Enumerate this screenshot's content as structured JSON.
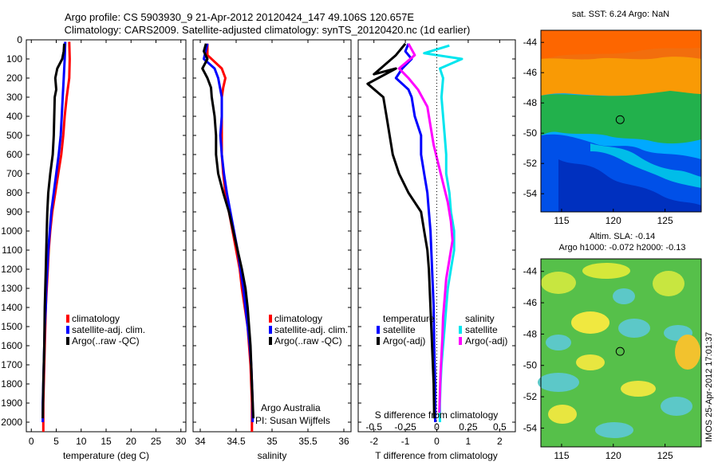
{
  "header": {
    "line1": "Argo profile: CS 5903930_9 21-Apr-2012 20120424_147 49.106S 120.657E",
    "line2": "Climatology: CARS2009. Satellite-adjusted climatology: synTS_20120420.nc (1d earlier)"
  },
  "colors": {
    "climatology": "#ff0000",
    "satellite": "#0000ff",
    "argo": "#000000",
    "sat_salinity": "#00e5ee",
    "argo_salinity_diff": "#ff00ff"
  },
  "chart_data": [
    {
      "id": "temperature",
      "type": "line",
      "xlabel": "temperature (deg C)",
      "ylabel": "",
      "xlim": [
        -1,
        31
      ],
      "ylim": [
        2050,
        0
      ],
      "xticks": [
        0,
        5,
        10,
        15,
        20,
        25,
        30
      ],
      "yticks": [
        0,
        100,
        200,
        300,
        400,
        500,
        600,
        700,
        800,
        900,
        1000,
        1100,
        1200,
        1300,
        1400,
        1500,
        1600,
        1700,
        1800,
        1900,
        2000
      ],
      "legend": [
        "climatology",
        "satellite-adj. clim.",
        "Argo(..raw -QC)"
      ],
      "series": [
        {
          "name": "climatology",
          "color": "#ff0000",
          "points": [
            [
              7.6,
              10
            ],
            [
              7.7,
              100
            ],
            [
              7.6,
              200
            ],
            [
              7.1,
              300
            ],
            [
              6.7,
              400
            ],
            [
              6.4,
              500
            ],
            [
              6.0,
              600
            ],
            [
              5.4,
              700
            ],
            [
              4.8,
              800
            ],
            [
              4.2,
              900
            ],
            [
              3.8,
              1000
            ],
            [
              3.5,
              1100
            ],
            [
              3.3,
              1200
            ],
            [
              3.1,
              1300
            ],
            [
              2.9,
              1400
            ],
            [
              2.8,
              1500
            ],
            [
              2.7,
              1600
            ],
            [
              2.6,
              1700
            ],
            [
              2.5,
              1800
            ],
            [
              2.4,
              1900
            ],
            [
              2.4,
              2050
            ]
          ]
        },
        {
          "name": "satellite-adj. clim.",
          "color": "#0000ff",
          "points": [
            [
              6.8,
              10
            ],
            [
              6.7,
              100
            ],
            [
              6.5,
              200
            ],
            [
              6.3,
              300
            ],
            [
              6.1,
              400
            ],
            [
              5.9,
              500
            ],
            [
              5.5,
              600
            ],
            [
              5.0,
              700
            ],
            [
              4.5,
              800
            ],
            [
              4.0,
              900
            ],
            [
              3.7,
              1000
            ],
            [
              3.4,
              1100
            ],
            [
              3.2,
              1200
            ],
            [
              3.0,
              1300
            ],
            [
              2.9,
              1400
            ],
            [
              2.7,
              1500
            ],
            [
              2.6,
              1600
            ],
            [
              2.5,
              1700
            ],
            [
              2.4,
              1800
            ],
            [
              2.3,
              1900
            ],
            [
              2.3,
              2000
            ]
          ]
        },
        {
          "name": "Argo(..raw -QC)",
          "color": "#000000",
          "points": [
            [
              6.6,
              20
            ],
            [
              6.5,
              60
            ],
            [
              6.2,
              100
            ],
            [
              5.2,
              150
            ],
            [
              4.8,
              200
            ],
            [
              5.0,
              260
            ],
            [
              4.7,
              300
            ],
            [
              4.6,
              400
            ],
            [
              4.5,
              500
            ],
            [
              4.3,
              600
            ],
            [
              3.8,
              700
            ],
            [
              3.4,
              800
            ],
            [
              3.2,
              900
            ],
            [
              3.1,
              1000
            ],
            [
              2.9,
              1200
            ],
            [
              2.7,
              1400
            ],
            [
              2.6,
              1600
            ],
            [
              2.4,
              1800
            ],
            [
              2.3,
              1980
            ]
          ]
        }
      ]
    },
    {
      "id": "salinity",
      "type": "line",
      "xlabel": "salinity",
      "ylabel": "",
      "xlim": [
        33.9,
        36.1
      ],
      "ylim": [
        2050,
        0
      ],
      "xticks": [
        34,
        34.5,
        35,
        35.5,
        36
      ],
      "xtick_labels": [
        "34",
        "34.5",
        "35",
        "35.5",
        "36"
      ],
      "legend": [
        "climatology",
        "satellite-adj. clim.",
        "Argo(..raw -QC)"
      ],
      "annotation": [
        "Argo Australia",
        "PI: Susan Wijffels"
      ],
      "series": [
        {
          "name": "climatology",
          "color": "#ff0000",
          "points": [
            [
              34.1,
              20
            ],
            [
              34.1,
              80
            ],
            [
              34.3,
              150
            ],
            [
              34.35,
              200
            ],
            [
              34.32,
              250
            ],
            [
              34.3,
              300
            ],
            [
              34.3,
              400
            ],
            [
              34.3,
              500
            ],
            [
              34.3,
              600
            ],
            [
              34.32,
              700
            ],
            [
              34.35,
              800
            ],
            [
              34.4,
              900
            ],
            [
              34.45,
              1000
            ],
            [
              34.5,
              1100
            ],
            [
              34.55,
              1200
            ],
            [
              34.58,
              1300
            ],
            [
              34.62,
              1400
            ],
            [
              34.66,
              1500
            ],
            [
              34.68,
              1600
            ],
            [
              34.7,
              1700
            ],
            [
              34.71,
              1800
            ],
            [
              34.72,
              1900
            ],
            [
              34.72,
              2050
            ]
          ]
        },
        {
          "name": "satellite-adj. clim.",
          "color": "#0000ff",
          "points": [
            [
              34.1,
              20
            ],
            [
              34.05,
              100
            ],
            [
              34.2,
              150
            ],
            [
              34.25,
              200
            ],
            [
              34.3,
              300
            ],
            [
              34.3,
              400
            ],
            [
              34.28,
              500
            ],
            [
              34.3,
              600
            ],
            [
              34.33,
              700
            ],
            [
              34.37,
              800
            ],
            [
              34.42,
              900
            ],
            [
              34.47,
              1000
            ],
            [
              34.52,
              1100
            ],
            [
              34.56,
              1200
            ],
            [
              34.6,
              1300
            ],
            [
              34.63,
              1400
            ],
            [
              34.66,
              1500
            ],
            [
              34.69,
              1600
            ],
            [
              34.71,
              1700
            ],
            [
              34.72,
              1800
            ],
            [
              34.73,
              1900
            ],
            [
              34.73,
              2000
            ]
          ]
        },
        {
          "name": "Argo(..raw -QC)",
          "color": "#000000",
          "points": [
            [
              34.08,
              20
            ],
            [
              34.05,
              60
            ],
            [
              34.1,
              100
            ],
            [
              34.03,
              150
            ],
            [
              34.1,
              200
            ],
            [
              34.15,
              250
            ],
            [
              34.16,
              300
            ],
            [
              34.2,
              400
            ],
            [
              34.22,
              500
            ],
            [
              34.22,
              600
            ],
            [
              34.25,
              700
            ],
            [
              34.32,
              800
            ],
            [
              34.4,
              900
            ],
            [
              34.46,
              1000
            ],
            [
              34.52,
              1100
            ],
            [
              34.58,
              1200
            ],
            [
              34.63,
              1300
            ],
            [
              34.66,
              1400
            ],
            [
              34.68,
              1500
            ],
            [
              34.7,
              1600
            ],
            [
              34.71,
              1700
            ],
            [
              34.72,
              1800
            ],
            [
              34.73,
              1900
            ],
            [
              34.74,
              1980
            ]
          ]
        }
      ]
    },
    {
      "id": "difference",
      "type": "line",
      "xlabel": "T difference from climatology",
      "xlabel_top": "S difference from climatology",
      "xlim": [
        -2.5,
        2.5
      ],
      "ylim": [
        2050,
        0
      ],
      "xticks": [
        -2,
        -1,
        0,
        1,
        2
      ],
      "xticks_top": [
        -0.5,
        -0.25,
        0,
        0.25,
        0.5
      ],
      "xticks_top_labels": [
        "-0.5",
        "-0.25",
        "0",
        "0.25",
        "0.5"
      ],
      "legend": {
        "temperature_title": "temperature",
        "salinity_title": "salinity",
        "t_items": [
          "satellite",
          "Argo(-adj)"
        ],
        "s_items": [
          "satellite",
          "Argo(-adj)"
        ]
      },
      "series": [
        {
          "name": "temperature satellite",
          "color": "#0000ff",
          "points": [
            [
              -0.9,
              20
            ],
            [
              -1.0,
              60
            ],
            [
              -0.8,
              100
            ],
            [
              -1.1,
              150
            ],
            [
              -1.3,
              200
            ],
            [
              -0.9,
              260
            ],
            [
              -0.8,
              300
            ],
            [
              -0.7,
              400
            ],
            [
              -0.5,
              500
            ],
            [
              -0.5,
              600
            ],
            [
              -0.4,
              700
            ],
            [
              -0.3,
              800
            ],
            [
              -0.25,
              900
            ],
            [
              -0.2,
              1000
            ],
            [
              -0.15,
              1200
            ],
            [
              -0.1,
              1400
            ],
            [
              -0.08,
              1600
            ],
            [
              -0.05,
              1800
            ],
            [
              -0.05,
              2000
            ]
          ]
        },
        {
          "name": "temperature Argo(-adj)",
          "color": "#000000",
          "points": [
            [
              -1.0,
              20
            ],
            [
              -1.3,
              80
            ],
            [
              -2.0,
              180
            ],
            [
              -1.3,
              150
            ],
            [
              -2.2,
              230
            ],
            [
              -1.7,
              300
            ],
            [
              -1.6,
              400
            ],
            [
              -1.5,
              500
            ],
            [
              -1.4,
              600
            ],
            [
              -1.2,
              700
            ],
            [
              -0.9,
              800
            ],
            [
              -0.5,
              900
            ],
            [
              -0.4,
              1000
            ],
            [
              -0.3,
              1100
            ],
            [
              -0.25,
              1200
            ],
            [
              -0.2,
              1400
            ],
            [
              -0.15,
              1600
            ],
            [
              -0.1,
              1800
            ],
            [
              -0.08,
              1980
            ]
          ]
        },
        {
          "name": "salinity satellite",
          "color": "#00e5ee",
          "points": [
            [
              0.4,
              30
            ],
            [
              -0.4,
              70
            ],
            [
              0.8,
              100
            ],
            [
              0.1,
              150
            ],
            [
              0.2,
              200
            ],
            [
              0.15,
              300
            ],
            [
              0.2,
              400
            ],
            [
              0.25,
              500
            ],
            [
              0.3,
              600
            ],
            [
              0.3,
              700
            ],
            [
              0.4,
              800
            ],
            [
              0.45,
              900
            ],
            [
              0.55,
              1000
            ],
            [
              0.55,
              1100
            ],
            [
              0.45,
              1200
            ],
            [
              0.35,
              1300
            ],
            [
              0.3,
              1400
            ],
            [
              0.25,
              1500
            ],
            [
              0.2,
              1600
            ],
            [
              0.15,
              1700
            ],
            [
              0.12,
              1800
            ],
            [
              0.1,
              1900
            ],
            [
              0.1,
              2000
            ]
          ]
        },
        {
          "name": "salinity Argo(-adj)",
          "color": "#ff00ff",
          "points": [
            [
              -0.9,
              20
            ],
            [
              -0.7,
              80
            ],
            [
              -1.2,
              150
            ],
            [
              -0.9,
              200
            ],
            [
              -0.6,
              260
            ],
            [
              -0.3,
              350
            ],
            [
              -0.2,
              450
            ],
            [
              -0.1,
              550
            ],
            [
              0.05,
              650
            ],
            [
              0.2,
              750
            ],
            [
              0.35,
              850
            ],
            [
              0.45,
              950
            ],
            [
              0.5,
              1050
            ],
            [
              0.4,
              1150
            ],
            [
              0.3,
              1250
            ],
            [
              0.25,
              1350
            ],
            [
              0.2,
              1450
            ],
            [
              0.18,
              1550
            ],
            [
              0.15,
              1650
            ],
            [
              0.12,
              1750
            ],
            [
              0.1,
              1850
            ],
            [
              0.08,
              1950
            ]
          ]
        }
      ]
    },
    {
      "id": "sst_map",
      "type": "heatmap",
      "title": "sat. SST: 6.24  Argo: NaN",
      "xlim": [
        113,
        128.5
      ],
      "ylim": [
        -55.2,
        -43.2
      ],
      "xticks": [
        115,
        120,
        125
      ],
      "yticks": [
        -44,
        -46,
        -48,
        -50,
        -52,
        -54
      ],
      "marker": [
        120.657,
        -49.106
      ]
    },
    {
      "id": "sla_map",
      "type": "heatmap",
      "title_line1": "Altim. SLA: -0.14",
      "title_line2": "Argo h1000: -0.072  h2000: -0.13",
      "xlim": [
        113,
        128.5
      ],
      "ylim": [
        -55.2,
        -43.2
      ],
      "xticks": [
        115,
        120,
        125
      ],
      "yticks": [
        -44,
        -46,
        -48,
        -50,
        -52,
        -54
      ],
      "marker": [
        120.657,
        -49.106
      ]
    }
  ],
  "footer": {
    "credit": "IMOS 25-Apr-2012 17:01:37"
  }
}
